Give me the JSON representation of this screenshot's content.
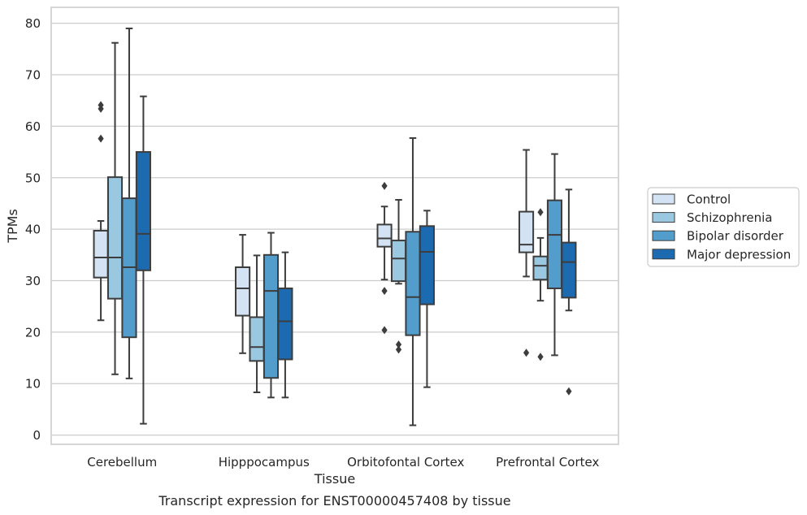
{
  "caption": "Transcript expression for ENST00000457408 by tissue",
  "chart_data": {
    "type": "box",
    "xlabel": "Tissue",
    "ylabel": "TPMs",
    "ylim": [
      -1.8,
      83.1
    ],
    "yticks": [
      0,
      10,
      20,
      30,
      40,
      50,
      60,
      70,
      80
    ],
    "grid": "horizontal",
    "legend_position": "right",
    "categories": [
      "Cerebellum",
      "Hipppocampus",
      "Orbitofontal Cortex",
      "Prefrontal Cortex"
    ],
    "series": [
      {
        "name": "Control",
        "color": "#d3e3f3",
        "boxes": [
          {
            "whislo": 22.3,
            "q1": 30.6,
            "med": 34.5,
            "q3": 39.7,
            "whishi": 41.6,
            "fliers": [
              57.6,
              63.4,
              64.1
            ]
          },
          {
            "whislo": 15.9,
            "q1": 23.2,
            "med": 28.5,
            "q3": 32.6,
            "whishi": 38.9,
            "fliers": []
          },
          {
            "whislo": 30.2,
            "q1": 36.6,
            "med": 38.2,
            "q3": 40.9,
            "whishi": 44.4,
            "fliers": [
              48.4,
              28.0,
              20.4
            ]
          },
          {
            "whislo": 30.8,
            "q1": 35.5,
            "med": 37.0,
            "q3": 43.4,
            "whishi": 55.4,
            "fliers": [
              16.0
            ]
          }
        ]
      },
      {
        "name": "Schizophrenia",
        "color": "#9ac8e0",
        "boxes": [
          {
            "whislo": 11.8,
            "q1": 26.5,
            "med": 34.5,
            "q3": 50.1,
            "whishi": 76.2,
            "fliers": []
          },
          {
            "whislo": 8.3,
            "q1": 14.4,
            "med": 17.1,
            "q3": 22.9,
            "whishi": 34.9,
            "fliers": []
          },
          {
            "whislo": 29.4,
            "q1": 29.9,
            "med": 34.3,
            "q3": 37.8,
            "whishi": 45.7,
            "fliers": [
              17.6,
              16.6
            ]
          },
          {
            "whislo": 26.1,
            "q1": 30.2,
            "med": 32.9,
            "q3": 34.7,
            "whishi": 38.3,
            "fliers": [
              43.3,
              15.2
            ]
          }
        ]
      },
      {
        "name": "Bipolar disorder",
        "color": "#529dcc",
        "boxes": [
          {
            "whislo": 11.0,
            "q1": 19.0,
            "med": 32.6,
            "q3": 46.0,
            "whishi": 79.0,
            "fliers": []
          },
          {
            "whislo": 7.3,
            "q1": 11.1,
            "med": 28.0,
            "q3": 35.0,
            "whishi": 39.3,
            "fliers": []
          },
          {
            "whislo": 1.9,
            "q1": 19.4,
            "med": 26.8,
            "q3": 39.5,
            "whishi": 57.7,
            "fliers": []
          },
          {
            "whislo": 15.5,
            "q1": 28.5,
            "med": 38.9,
            "q3": 45.6,
            "whishi": 54.6,
            "fliers": []
          }
        ]
      },
      {
        "name": "Major depression",
        "color": "#1c6aaf",
        "boxes": [
          {
            "whislo": 2.2,
            "q1": 32.0,
            "med": 39.1,
            "q3": 55.0,
            "whishi": 65.8,
            "fliers": []
          },
          {
            "whislo": 7.3,
            "q1": 14.7,
            "med": 22.1,
            "q3": 28.5,
            "whishi": 35.5,
            "fliers": []
          },
          {
            "whislo": 9.3,
            "q1": 25.4,
            "med": 35.6,
            "q3": 40.6,
            "whishi": 43.6,
            "fliers": []
          },
          {
            "whislo": 24.2,
            "q1": 26.7,
            "med": 33.6,
            "q3": 37.4,
            "whishi": 47.7,
            "fliers": [
              8.5
            ]
          }
        ]
      }
    ]
  }
}
